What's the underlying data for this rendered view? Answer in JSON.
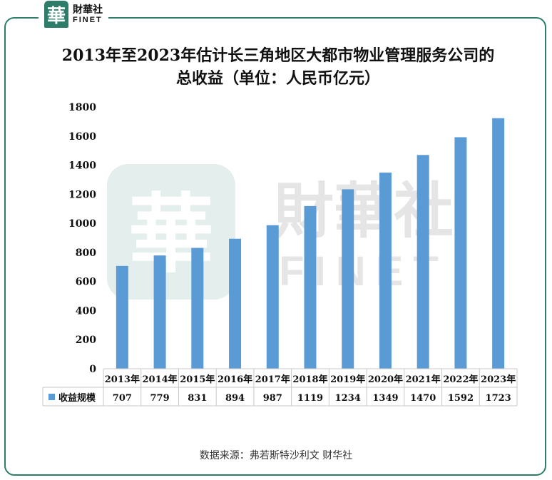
{
  "logo": {
    "mark": "華",
    "cn": "財華社",
    "en": "FINET"
  },
  "watermark": {
    "mark": "華",
    "cn": "財華社",
    "en": "FINET"
  },
  "source": "数据来源：弗若斯特沙利文 财华社",
  "chart_data": {
    "type": "bar",
    "title": "2013年至2023年估计长三角地区大都市物业管理服务公司的总收益（单位：人民币亿元）",
    "categories": [
      "2013年",
      "2014年",
      "2015年",
      "2016年",
      "2017年",
      "2018年",
      "2019年",
      "2020年",
      "2021年",
      "2022年",
      "2023年"
    ],
    "series": [
      {
        "name": "收益规模",
        "values": [
          707,
          779,
          831,
          894,
          987,
          1119,
          1234,
          1349,
          1470,
          1592,
          1723
        ]
      }
    ],
    "ylim": [
      0,
      1800
    ],
    "yticks": [
      0,
      200,
      400,
      600,
      800,
      1000,
      1200,
      1400,
      1600,
      1800
    ],
    "grid": false,
    "data_table": true,
    "colors": {
      "bar": "#5b9bd5",
      "accent": "#2e7d6b"
    }
  }
}
